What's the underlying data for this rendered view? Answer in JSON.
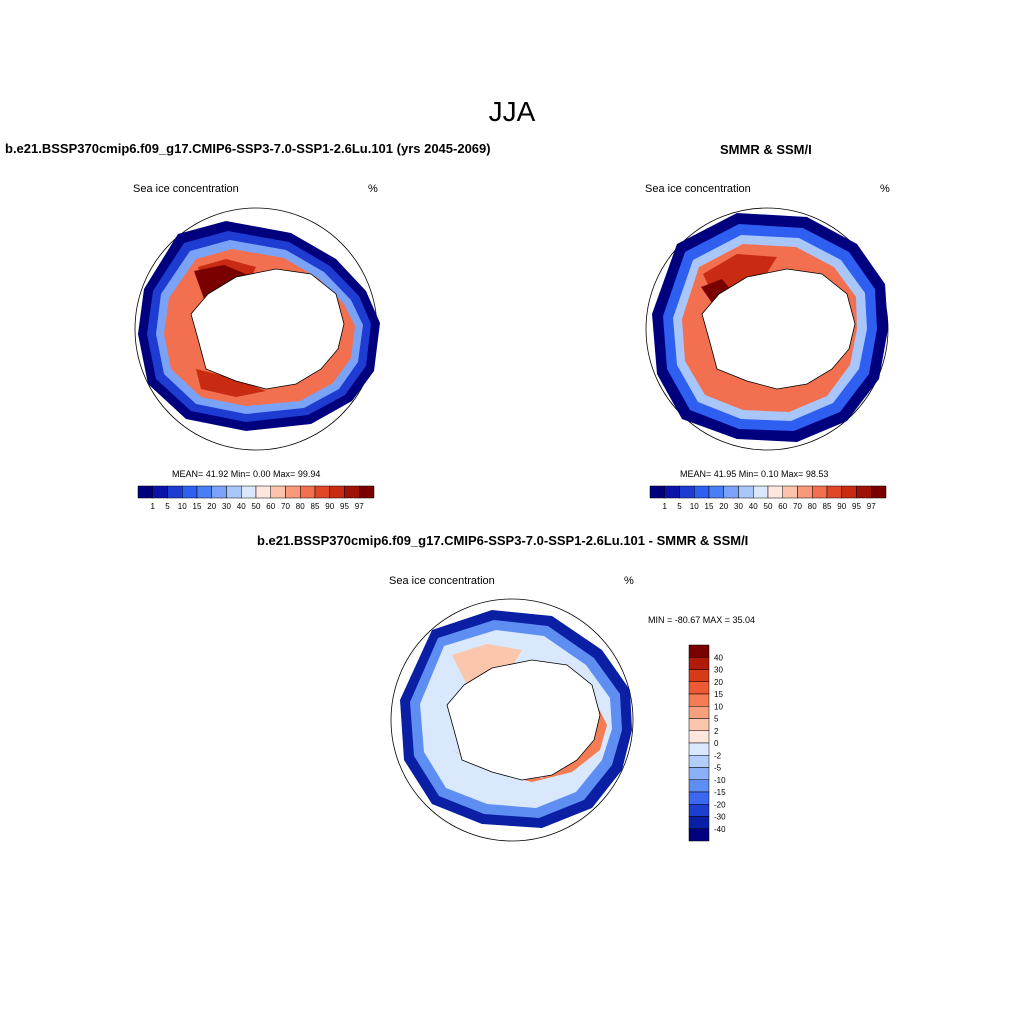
{
  "figure": {
    "title": "JJA"
  },
  "panels": [
    {
      "id": "model",
      "title": "b.e21.BSSP370cmip6.f09_g17.CMIP6-SSP3-7.0-SSP1-2.6Lu.101 (yrs 2045-2069)",
      "left_label": "Sea ice concentration",
      "right_label": "%",
      "stats": "MEAN=  41.92  Min=   0.00  Max=  99.94"
    },
    {
      "id": "obs",
      "title": "SMMR & SSM/I",
      "left_label": "Sea ice concentration",
      "right_label": "%",
      "stats": "MEAN=  41.95  Min=   0.10  Max=  98.53"
    },
    {
      "id": "diff",
      "title": "b.e21.BSSP370cmip6.f09_g17.CMIP6-SSP3-7.0-SSP1-2.6Lu.101 - SMMR & SSM/I",
      "left_label": "Sea ice concentration",
      "right_label": "%",
      "stats": "MIN = -80.67 MAX =  35.04"
    }
  ],
  "colorbars": {
    "concentration": {
      "labels": [
        "1",
        "5",
        "10",
        "15",
        "20",
        "30",
        "40",
        "50",
        "60",
        "70",
        "80",
        "85",
        "90",
        "95",
        "97"
      ],
      "colors": [
        "#00007f",
        "#0a14a8",
        "#1e3cd2",
        "#2f5ff0",
        "#4a7ef5",
        "#7aa3f7",
        "#a9c6fb",
        "#d9e8fd",
        "#fde6dc",
        "#fbc3ac",
        "#f7997a",
        "#f2704f",
        "#e14726",
        "#c82a12",
        "#9e1206",
        "#7a0000"
      ]
    },
    "difference": {
      "labels": [
        "40",
        "30",
        "20",
        "15",
        "10",
        "5",
        "2",
        "0",
        "-2",
        "-5",
        "-10",
        "-15",
        "-20",
        "-30",
        "-40"
      ],
      "colors": [
        "#7a0000",
        "#b01a08",
        "#d63a18",
        "#ee5a33",
        "#f47d55",
        "#f8a07e",
        "#fbc6ac",
        "#fde6dc",
        "#d9e8fd",
        "#b3cefb",
        "#8bb0f7",
        "#5f8ef3",
        "#3b68ee",
        "#1c3fd0",
        "#0a1fa3",
        "#00007f"
      ]
    }
  }
}
